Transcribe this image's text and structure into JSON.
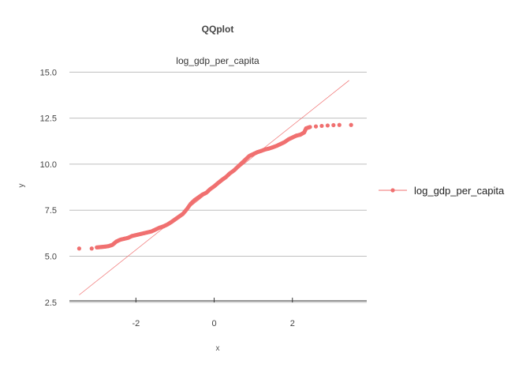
{
  "chart_data": {
    "type": "scatter",
    "title": "QQplot",
    "subtitle": "log_gdp_per_capita",
    "xlabel": "x",
    "ylabel": "y",
    "xlim": [
      -3.7,
      3.9
    ],
    "ylim": [
      2.45,
      15.4
    ],
    "x_ticks": [
      -2,
      0,
      2
    ],
    "x_tick_labels": [
      "-2",
      "0",
      "2"
    ],
    "y_ticks": [
      2.5,
      5.0,
      7.5,
      10.0,
      12.5,
      15.0
    ],
    "y_tick_labels": [
      "2.5",
      "5.0",
      "7.5",
      "10.0",
      "12.5",
      "15.0"
    ],
    "grid": "horizontal",
    "legend_position": "right",
    "point_color": "#f07070",
    "line_color": "#f07070",
    "reference_line": {
      "x": [
        -3.45,
        3.45
      ],
      "y": [
        2.9,
        14.55
      ]
    },
    "series": [
      {
        "name": "log_gdp_per_capita",
        "points": [
          [
            -3.45,
            5.42
          ],
          [
            -3.13,
            5.42
          ],
          [
            -3.0,
            5.48
          ],
          [
            -2.9,
            5.5
          ],
          [
            -2.8,
            5.52
          ],
          [
            -2.7,
            5.55
          ],
          [
            -2.6,
            5.62
          ],
          [
            -2.5,
            5.8
          ],
          [
            -2.4,
            5.9
          ],
          [
            -2.3,
            5.95
          ],
          [
            -2.2,
            6.0
          ],
          [
            -2.1,
            6.1
          ],
          [
            -2.0,
            6.15
          ],
          [
            -1.9,
            6.2
          ],
          [
            -1.8,
            6.25
          ],
          [
            -1.7,
            6.3
          ],
          [
            -1.6,
            6.35
          ],
          [
            -1.5,
            6.45
          ],
          [
            -1.4,
            6.55
          ],
          [
            -1.3,
            6.62
          ],
          [
            -1.2,
            6.72
          ],
          [
            -1.1,
            6.85
          ],
          [
            -1.0,
            7.0
          ],
          [
            -0.9,
            7.15
          ],
          [
            -0.8,
            7.3
          ],
          [
            -0.7,
            7.55
          ],
          [
            -0.6,
            7.85
          ],
          [
            -0.5,
            8.05
          ],
          [
            -0.4,
            8.2
          ],
          [
            -0.3,
            8.35
          ],
          [
            -0.2,
            8.45
          ],
          [
            -0.1,
            8.65
          ],
          [
            0.0,
            8.8
          ],
          [
            0.1,
            8.98
          ],
          [
            0.2,
            9.15
          ],
          [
            0.3,
            9.3
          ],
          [
            0.4,
            9.5
          ],
          [
            0.5,
            9.65
          ],
          [
            0.6,
            9.85
          ],
          [
            0.7,
            10.05
          ],
          [
            0.8,
            10.25
          ],
          [
            0.9,
            10.45
          ],
          [
            1.0,
            10.55
          ],
          [
            1.1,
            10.65
          ],
          [
            1.2,
            10.72
          ],
          [
            1.3,
            10.8
          ],
          [
            1.4,
            10.85
          ],
          [
            1.5,
            10.92
          ],
          [
            1.6,
            11.0
          ],
          [
            1.7,
            11.1
          ],
          [
            1.8,
            11.2
          ],
          [
            1.9,
            11.35
          ],
          [
            2.0,
            11.45
          ],
          [
            2.1,
            11.55
          ],
          [
            2.2,
            11.6
          ],
          [
            2.3,
            11.72
          ],
          [
            2.35,
            11.95
          ],
          [
            2.45,
            12.02
          ],
          [
            2.6,
            12.05
          ],
          [
            2.75,
            12.08
          ],
          [
            2.9,
            12.1
          ],
          [
            3.05,
            12.12
          ],
          [
            3.2,
            12.13
          ],
          [
            3.5,
            12.13
          ]
        ]
      }
    ]
  }
}
